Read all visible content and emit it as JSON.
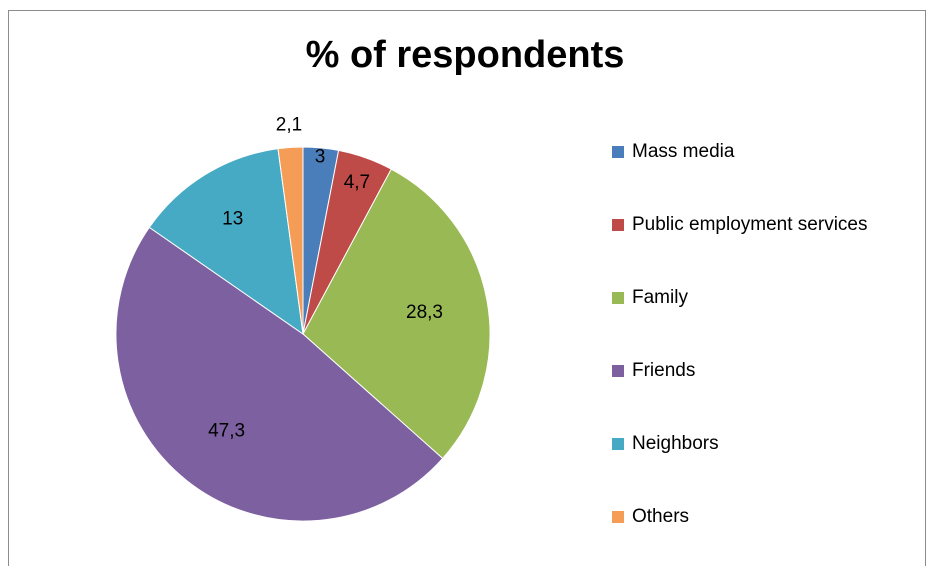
{
  "chart_data": {
    "type": "pie",
    "title": "% of respondents",
    "categories": [
      "Mass media",
      "Public employment services",
      "Family",
      "Friends",
      "Neighbors",
      "Others"
    ],
    "values": [
      3,
      4.7,
      28.3,
      47.3,
      13,
      2.1
    ],
    "data_labels": [
      "3",
      "4,7",
      "28,3",
      "47,3",
      "13",
      "2,1"
    ],
    "colors": [
      "#4a7ebb",
      "#be4b48",
      "#98b954",
      "#7d60a0",
      "#46aac4",
      "#f59d56"
    ],
    "start_angle_deg": 0,
    "direction": "clockwise",
    "legend": "right"
  }
}
